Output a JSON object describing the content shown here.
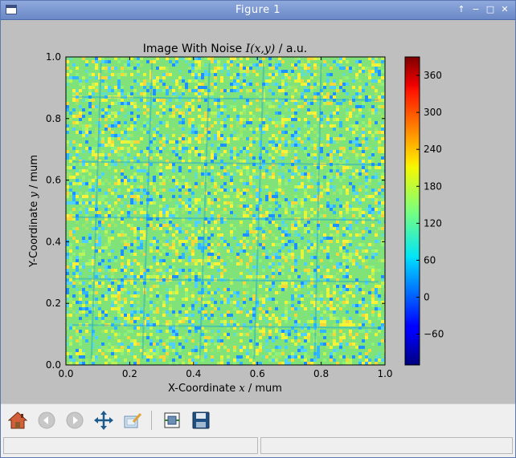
{
  "window": {
    "title": "Figure 1",
    "controls": [
      "restore-up",
      "minimize",
      "maximize",
      "close"
    ]
  },
  "plot": {
    "title_plain": "Image With Noise ",
    "title_math": "I(x,y)",
    "title_unit": " / a.u.",
    "xlabel_plain": "X-Coordinate ",
    "xlabel_math": "x",
    "xlabel_unit": " / mum",
    "ylabel_plain": "Y-Coordinate ",
    "ylabel_math": "y",
    "ylabel_unit": " / mum",
    "xticks": [
      "0.0",
      "0.2",
      "0.4",
      "0.6",
      "0.8",
      "1.0"
    ],
    "yticks": [
      "0.0",
      "0.2",
      "0.4",
      "0.6",
      "0.8",
      "1.0"
    ],
    "colorbar_ticks": [
      "−60",
      "0",
      "60",
      "120",
      "180",
      "240",
      "300",
      "360"
    ],
    "colormap": "jet"
  },
  "chart_data": {
    "type": "heatmap",
    "title": "Image With Noise I(x,y) / a.u.",
    "xlabel": "X-Coordinate x / mum",
    "ylabel": "Y-Coordinate y / mum",
    "xlim": [
      0.0,
      1.0
    ],
    "ylim": [
      0.0,
      1.0
    ],
    "colorbar_range": [
      -110,
      390
    ],
    "colorbar_ticks": [
      -60,
      0,
      60,
      120,
      180,
      240,
      300,
      360
    ],
    "typical_value_range": [
      100,
      200
    ],
    "colormap": "jet",
    "grid": false
  },
  "toolbar": {
    "items": [
      "home",
      "back",
      "forward",
      "pan",
      "zoom",
      "subplots",
      "save"
    ]
  },
  "statusbar": {
    "left": "",
    "right": ""
  }
}
